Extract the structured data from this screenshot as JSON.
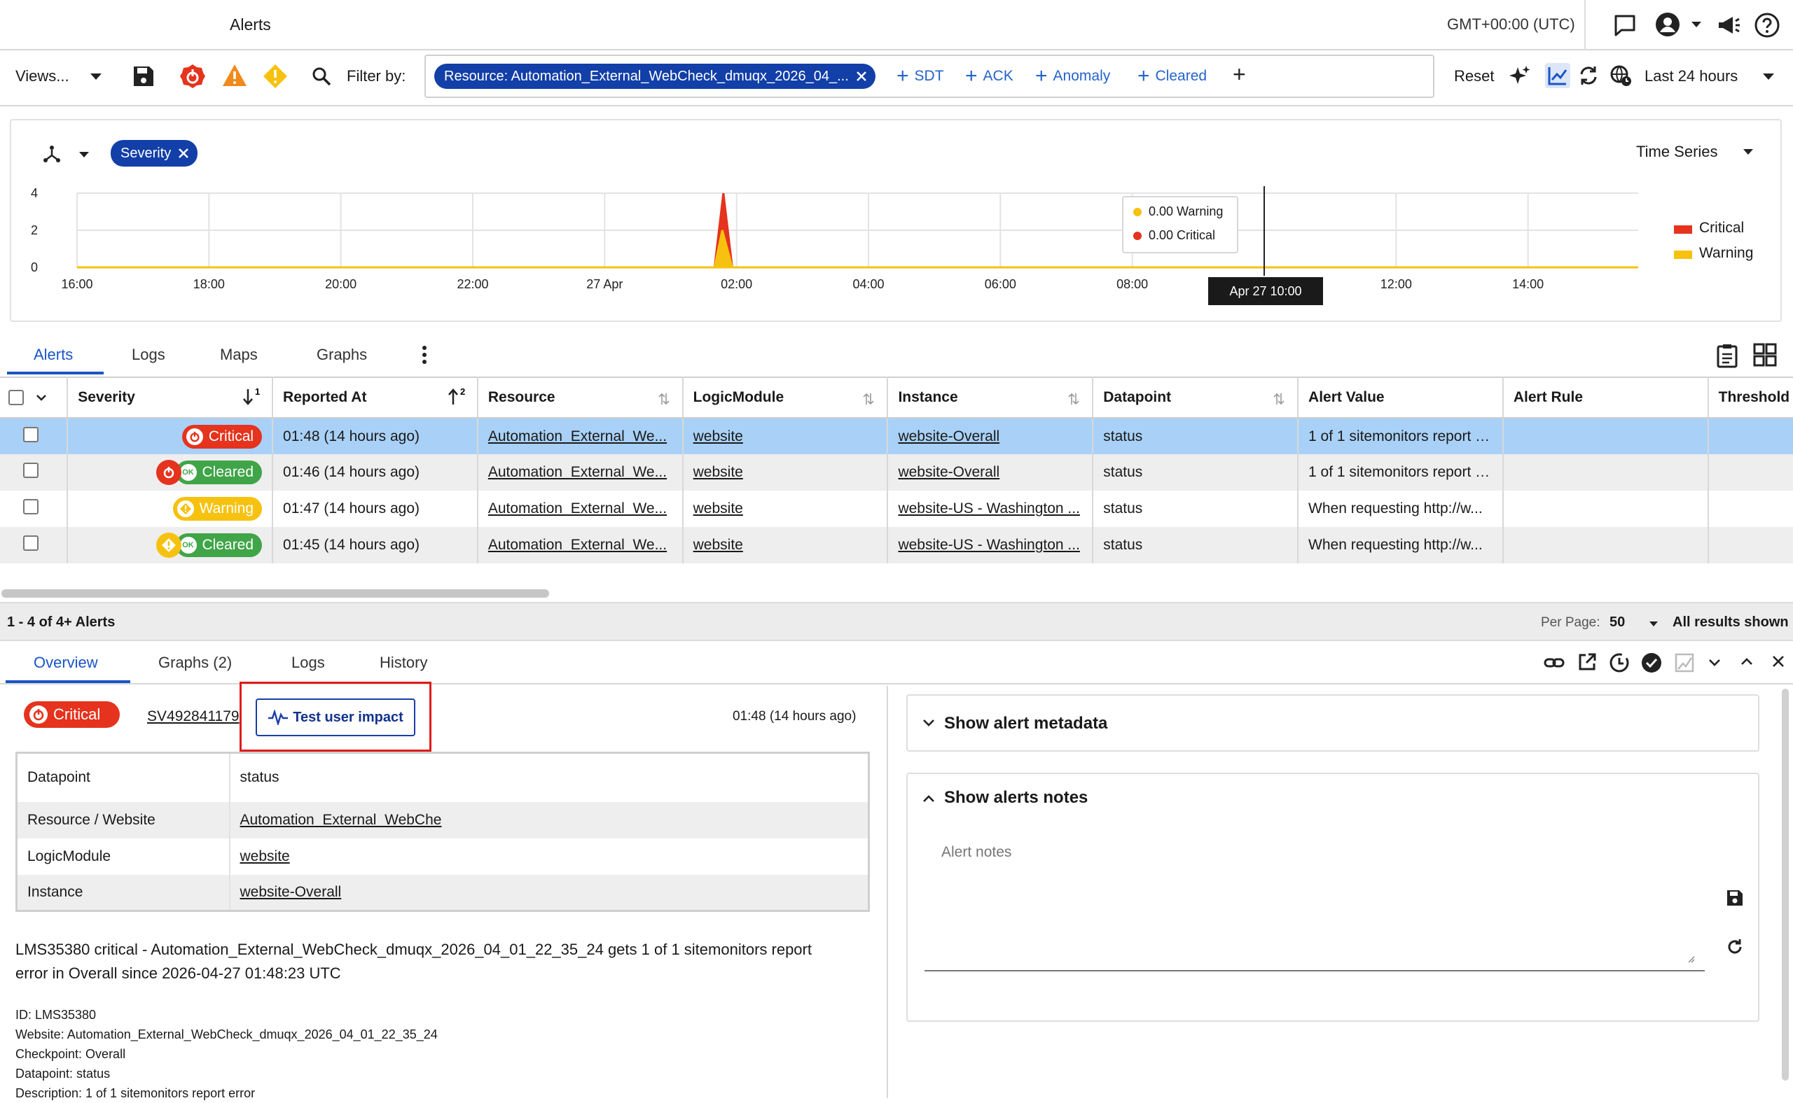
{
  "header": {
    "title": "Alerts",
    "timezone": "GMT+00:00 (UTC)"
  },
  "filter_bar": {
    "views_label": "Views...",
    "filter_by_label": "Filter by:",
    "resource_chip": "Resource: Automation_External_WebCheck_dmuqx_2026_04_...",
    "quick_filters": [
      "SDT",
      "ACK",
      "Anomaly",
      "Cleared"
    ],
    "reset_label": "Reset",
    "time_range": "Last 24 hours"
  },
  "chart_panel": {
    "group_chip": "Severity",
    "view_selector": "Time Series",
    "tooltip": {
      "warning": "0.00 Warning",
      "critical": "0.00 Critical",
      "time": "Apr 27 10:00"
    },
    "legend": [
      "Critical",
      "Warning"
    ]
  },
  "chart_data": {
    "type": "area",
    "x_ticks": [
      "16:00",
      "18:00",
      "20:00",
      "22:00",
      "27 Apr",
      "02:00",
      "04:00",
      "06:00",
      "08:00",
      "10:00",
      "12:00",
      "14:00"
    ],
    "y_ticks": [
      "0",
      "2",
      "4"
    ],
    "ylim": [
      0,
      4
    ],
    "series": [
      {
        "name": "Critical",
        "color": "#e5331d",
        "points": [
          [
            "16:00",
            0
          ],
          [
            "01:40",
            0
          ],
          [
            "01:48",
            4
          ],
          [
            "01:56",
            0
          ],
          [
            "15:40",
            0
          ]
        ]
      },
      {
        "name": "Warning",
        "color": "#f6c20f",
        "points": [
          [
            "16:00",
            0
          ],
          [
            "01:40",
            0
          ],
          [
            "01:47",
            2
          ],
          [
            "01:56",
            0
          ],
          [
            "15:40",
            0
          ]
        ]
      }
    ],
    "crosshair": "10:00",
    "legend_position": "right"
  },
  "main_tabs": [
    "Alerts",
    "Logs",
    "Maps",
    "Graphs"
  ],
  "table": {
    "columns": [
      "Severity",
      "Reported At",
      "Resource",
      "LogicModule",
      "Instance",
      "Datapoint",
      "Alert Value",
      "Alert Rule",
      "Threshold"
    ],
    "sort_badges": {
      "severity": "1",
      "reported": "2"
    },
    "rows": [
      {
        "severity": "Critical",
        "sev_type": "critical",
        "cleared_from": "",
        "reported": "01:48  (14 hours ago)",
        "resource": "Automation_External_We...",
        "logic": "website",
        "instance": "website-Overall",
        "datapoint": "status",
        "value": "1 of 1 sitemonitors report e...",
        "rule": "",
        "threshold": ""
      },
      {
        "severity": "Cleared",
        "sev_type": "cleared",
        "cleared_from": "critical",
        "reported": "01:46  (14 hours ago)",
        "resource": "Automation_External_We...",
        "logic": "website",
        "instance": "website-Overall",
        "datapoint": "status",
        "value": "1 of 1 sitemonitors report e...",
        "rule": "",
        "threshold": ""
      },
      {
        "severity": "Warning",
        "sev_type": "warning",
        "cleared_from": "",
        "reported": "01:47  (14 hours ago)",
        "resource": "Automation_External_We...",
        "logic": "website",
        "instance": "website-US - Washington ...",
        "datapoint": "status",
        "value": "When requesting http://w...",
        "rule": "",
        "threshold": ""
      },
      {
        "severity": "Cleared",
        "sev_type": "cleared",
        "cleared_from": "warning",
        "reported": "01:45  (14 hours ago)",
        "resource": "Automation_External_We...",
        "logic": "website",
        "instance": "website-US - Washington ...",
        "datapoint": "status",
        "value": "When requesting http://w...",
        "rule": "",
        "threshold": ""
      }
    ]
  },
  "pager": {
    "count": "1 - 4 of 4+ Alerts",
    "per_page_label": "Per Page:",
    "per_page": "50",
    "results": "All results shown"
  },
  "detail_tabs": [
    "Overview",
    "Graphs (2)",
    "Logs",
    "History"
  ],
  "detail": {
    "severity": "Critical",
    "alert_id": "SV492841179",
    "test_button": "Test user impact",
    "time": "01:48  (14 hours ago)",
    "props": [
      {
        "k": "Datapoint",
        "v": "status",
        "link": false
      },
      {
        "k": "Resource / Website",
        "v": "Automation_External_WebChe",
        "link": true
      },
      {
        "k": "LogicModule",
        "v": "website",
        "link": true
      },
      {
        "k": "Instance",
        "v": "website-Overall",
        "link": true
      }
    ],
    "message_line1": "LMS35380 critical - Automation_External_WebCheck_dmuqx_2026_04_01_22_35_24 gets 1 of 1 sitemonitors report",
    "message_line2": "error in Overall since 2026-04-27 01:48:23 UTC",
    "info": [
      "ID: LMS35380",
      "Website: Automation_External_WebCheck_dmuqx_2026_04_01_22_35_24",
      "Checkpoint: Overall",
      "Datapoint: status",
      "Description: 1 of 1 sitemonitors report error"
    ],
    "metadata_title": "Show alert metadata",
    "notes_title": "Show alerts notes",
    "notes_placeholder": "Alert notes"
  },
  "colors": {
    "accent": "#1a55c6",
    "critical": "#e5331d",
    "warning": "#f6c20f",
    "cleared": "#3fa548",
    "selected_row": "#a9d1f7"
  }
}
